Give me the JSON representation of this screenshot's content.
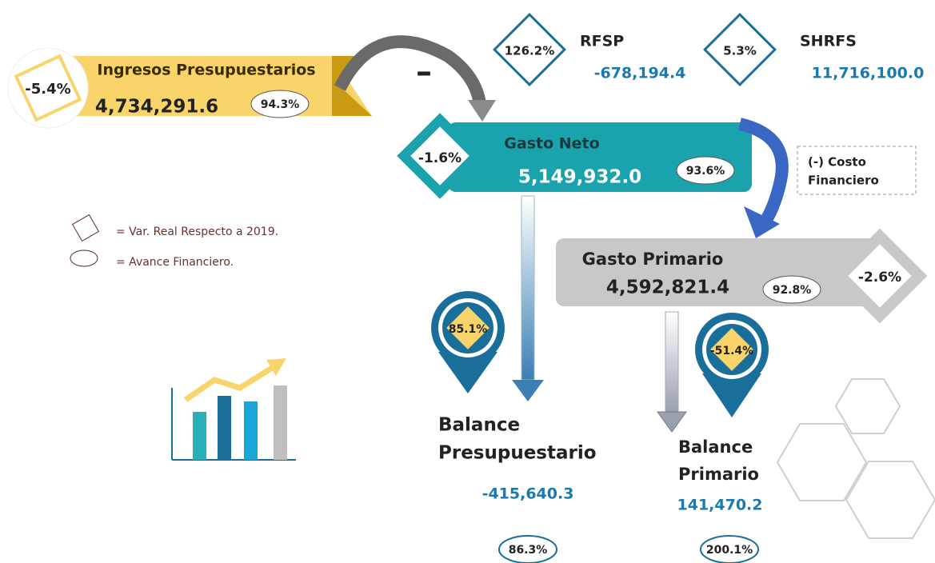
{
  "ingresos": {
    "label": "Ingresos Presupuestarios",
    "value": "4,734,291.6",
    "variation": "-5.4%",
    "progress": "94.3%"
  },
  "operator": "–",
  "rfsp": {
    "variation": "126.2%",
    "label": "RFSP",
    "value": "-678,194.4"
  },
  "shrfs": {
    "variation": "5.3%",
    "label": "SHRFS",
    "value": "11,716,100.0"
  },
  "gasto_neto": {
    "variation": "-1.6%",
    "label": "Gasto Neto",
    "value": "5,149,932.0",
    "progress": "93.6%"
  },
  "costo_financiero": {
    "lines": [
      "(-) Costo",
      "Financiero"
    ]
  },
  "legend": {
    "diamond": "= Var. Real Respecto a 2019.",
    "oval": "= Avance Financiero."
  },
  "gasto_primario": {
    "label": "Gasto Primario",
    "value": "4,592,821.4",
    "progress": "92.8%",
    "variation": "-2.6%"
  },
  "balance_presupuestario": {
    "variation": "85.1%",
    "lines": [
      "Balance",
      "Presupuestario"
    ],
    "value": "-415,640.3",
    "progress": "86.3%"
  },
  "balance_primario": {
    "variation": "-51.4%",
    "lines": [
      "Balance",
      "Primario"
    ],
    "value": "141,470.2",
    "progress": "200.1%"
  }
}
